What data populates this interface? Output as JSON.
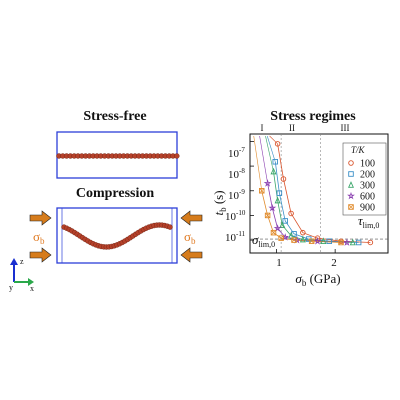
{
  "left_panel": {
    "stress_free_title": "Stress-free",
    "compression_title": "Compression",
    "sigma_symbol": "σ",
    "sigma_sub": "b",
    "axes_labels": {
      "z": "z",
      "x": "x",
      "y": "y"
    },
    "colors": {
      "box": "#2c3fd8",
      "chain": "#b5412a",
      "arrow": "#d67c1c",
      "sigma": "#e07a22",
      "axis_z": "#1a2fd0",
      "axis_x": "#2aa84a"
    }
  },
  "right_panel": {
    "title": "Stress regimes",
    "regimes": [
      "I",
      "II",
      "III"
    ],
    "y_label_main": "t",
    "y_label_sub": "b",
    "y_label_unit": " (s)",
    "x_label_main": "σ",
    "x_label_sub": "b",
    "x_label_unit": " (GPa)",
    "y_ticks": [
      {
        "base": "10",
        "exp": "-7"
      },
      {
        "base": "10",
        "exp": "-8"
      },
      {
        "base": "10",
        "exp": "-9"
      },
      {
        "base": "10",
        "exp": "-10"
      },
      {
        "base": "10",
        "exp": "-11"
      }
    ],
    "x_ticks": [
      "1",
      "2"
    ],
    "annotation_sigma": {
      "main": "σ",
      "sub": "lim,0"
    },
    "annotation_tau": {
      "main": "τ",
      "sub": "lim,0"
    },
    "legend": {
      "title": "T/K",
      "entries": [
        {
          "label": "100",
          "marker": "circle",
          "color": "#d9542c"
        },
        {
          "label": "200",
          "marker": "square",
          "color": "#3a8fc7"
        },
        {
          "label": "300",
          "marker": "triangle",
          "color": "#3aa66a"
        },
        {
          "label": "600",
          "marker": "star",
          "color": "#8a3fb0"
        },
        {
          "label": "900",
          "marker": "xsquare",
          "color": "#e08a2a"
        }
      ]
    }
  },
  "chart_data": {
    "type": "scatter",
    "title": "Stress regimes",
    "xlabel": "σb (GPa)",
    "ylabel": "tb (s)",
    "y_scale": "log",
    "xlim": [
      0.55,
      2.9
    ],
    "ylim": [
      3e-12,
      2e-07
    ],
    "series": [
      {
        "name": "100",
        "x": [
          1.02,
          1.12,
          1.25,
          1.45,
          1.7,
          2.1,
          2.6
        ],
        "y": [
          8e-08,
          3e-09,
          1.2e-10,
          2e-11,
          1.2e-11,
          9e-12,
          8e-12
        ]
      },
      {
        "name": "200",
        "x": [
          0.98,
          1.05,
          1.15,
          1.3,
          1.55,
          1.9,
          2.4
        ],
        "y": [
          1.5e-08,
          8e-10,
          6e-11,
          1.8e-11,
          1.1e-11,
          9e-12,
          8e-12
        ]
      },
      {
        "name": "300",
        "x": [
          0.95,
          1.02,
          1.1,
          1.25,
          1.45,
          1.8,
          2.3
        ],
        "y": [
          6e-09,
          4e-10,
          4e-11,
          1.5e-11,
          1.05e-11,
          9e-12,
          8e-12
        ]
      },
      {
        "name": "600",
        "x": [
          0.85,
          0.93,
          1.02,
          1.15,
          1.35,
          1.7,
          2.2
        ],
        "y": [
          2e-09,
          2e-10,
          3e-11,
          1.3e-11,
          1e-11,
          9e-12,
          8e-12
        ]
      },
      {
        "name": "900",
        "x": [
          0.75,
          0.85,
          0.95,
          1.08,
          1.3,
          1.6,
          2.1
        ],
        "y": [
          1e-09,
          1e-10,
          2e-11,
          1.2e-11,
          1e-11,
          9e-12,
          8e-12
        ]
      }
    ]
  }
}
